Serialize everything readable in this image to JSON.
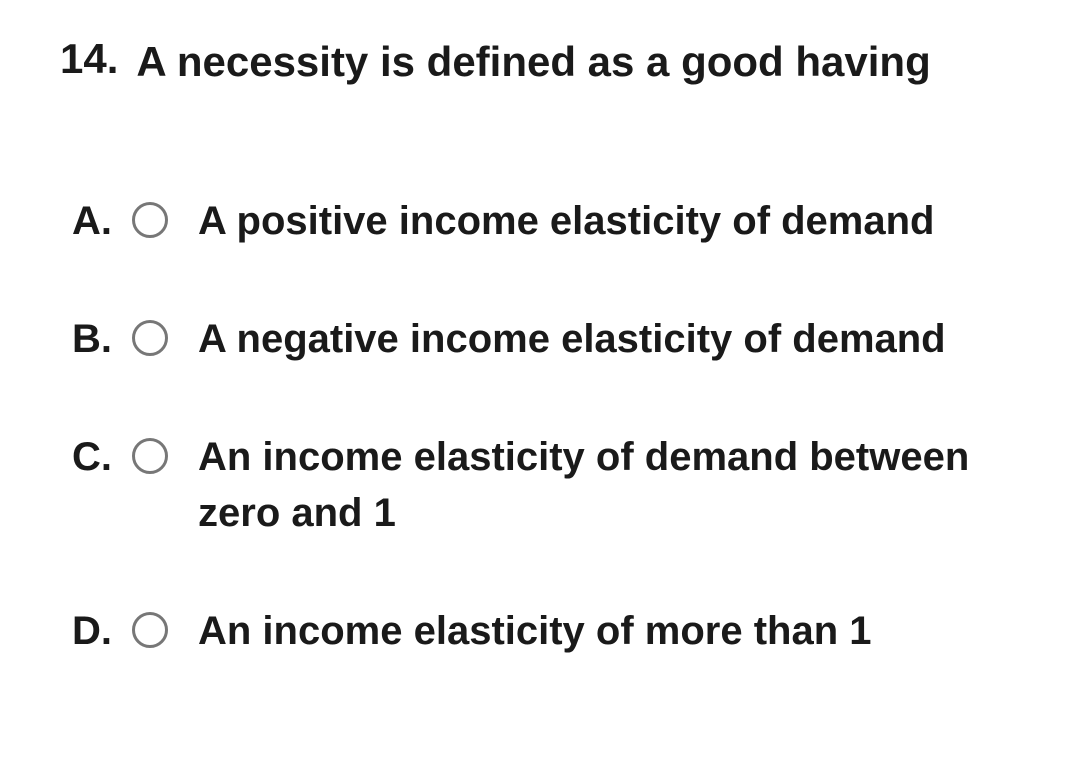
{
  "question": {
    "number": "14.",
    "text": "A necessity is defined as a good having"
  },
  "options": [
    {
      "letter": "A.",
      "text": "A positive income elasticity of demand"
    },
    {
      "letter": "B.",
      "text": "A negative income elasticity of demand"
    },
    {
      "letter": "C.",
      "text": "An income elasticity of demand between zero and 1"
    },
    {
      "letter": "D.",
      "text": "An income elasticity of more than 1"
    }
  ],
  "colors": {
    "text_color": "#1a1a1a",
    "radio_border": "#777777",
    "background": "#ffffff"
  },
  "typography": {
    "question_fontsize": 42,
    "option_fontsize": 40,
    "font_weight": 700
  }
}
